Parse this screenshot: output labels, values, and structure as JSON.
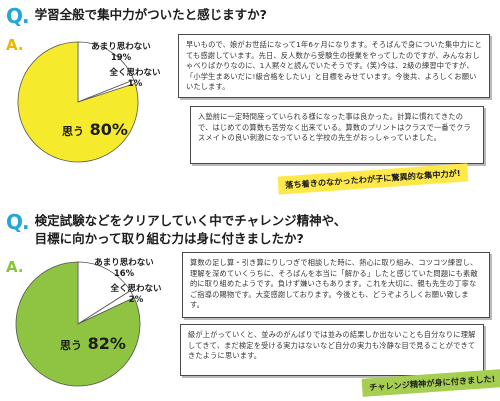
{
  "q1": {
    "mark": "Q.",
    "question": "学習全般で集中力がついたと感じますか?",
    "answer_mark": "A.",
    "chart_data": {
      "type": "pie",
      "slices": [
        {
          "label": "思う",
          "value": 80,
          "color": "#f5ea2c"
        },
        {
          "label": "あまり思わない",
          "value": 19,
          "color": "#ffffff"
        },
        {
          "label": "全く思わない",
          "value": 1,
          "color": "#ffffff"
        }
      ]
    },
    "labels": {
      "main_word": "思う",
      "main_pct": "80%",
      "slice2_name": "あまり思わない",
      "slice2_pct": "19%",
      "slice3_name": "全く思わない",
      "slice3_pct": "1%"
    },
    "comment1": "早いもので、娘がお世話になって1年6ヶ月になります。そろばんで身についた集中力にとても感謝しています。先日、反人数から受験生の授業をやってしたのですが、みんなおしゃべりばかりなのに、1人黙々と読んでいたそうです。(笑)今は、2級の練習中ですが、「小学生まあいだに!級合格をしたい」と目標をみせています。今後共、よろしくお願いいたします。",
    "comment2": "入塾前に一定時間座っていられる様になった事は良かった。計算に慣れてきたので、はじめての算数も苦労なく出来ている。算数のプリントはクラスで一番でクラスメイトの良い刺激になっていると学校の先生がおっしゃっていました。",
    "tag": "落ち着きのなかったわが子に驚異的な集中力が!"
  },
  "q2": {
    "mark": "Q.",
    "question_line1": "検定試験などをクリアしていく中でチャレンジ精神や、",
    "question_line2": "目標に向かって取り組む力は身に付きましたか?",
    "answer_mark": "A.",
    "chart_data": {
      "type": "pie",
      "slices": [
        {
          "label": "思う",
          "value": 82,
          "color": "#8fc442"
        },
        {
          "label": "あまり思わない",
          "value": 16,
          "color": "#ffffff"
        },
        {
          "label": "全く思わない",
          "value": 2,
          "color": "#ffffff"
        }
      ]
    },
    "labels": {
      "main_word": "思う",
      "main_pct": "82%",
      "slice2_name": "あまり思わない",
      "slice2_pct": "16%",
      "slice3_name": "全く思わない",
      "slice3_pct": "2%"
    },
    "comment1": "算数の足し算・引き算にりしつぎで相談した時に、熱心に取り組み、コツコツ練習し、理解を深めていくうちに、そろばんを本当に「解かる」したと感じていた問題にも素敵的に取り組めたようです。負けず嫌いさもあります。これを大切に、親も先生の丁寧なご指導の賜物です。大変感謝しております。今後とも、どうぞよろしくお願い致します。",
    "comment2": "級が上がっていくと、並みのがんばりでは並みの結果しか出ないことも自分なりに理解してきて、まだ検定を受ける実力はないなど自分の実力も冷静な目で見ることができてきたように思います。",
    "tag": "チャレンジ精神が身に付きました!"
  }
}
